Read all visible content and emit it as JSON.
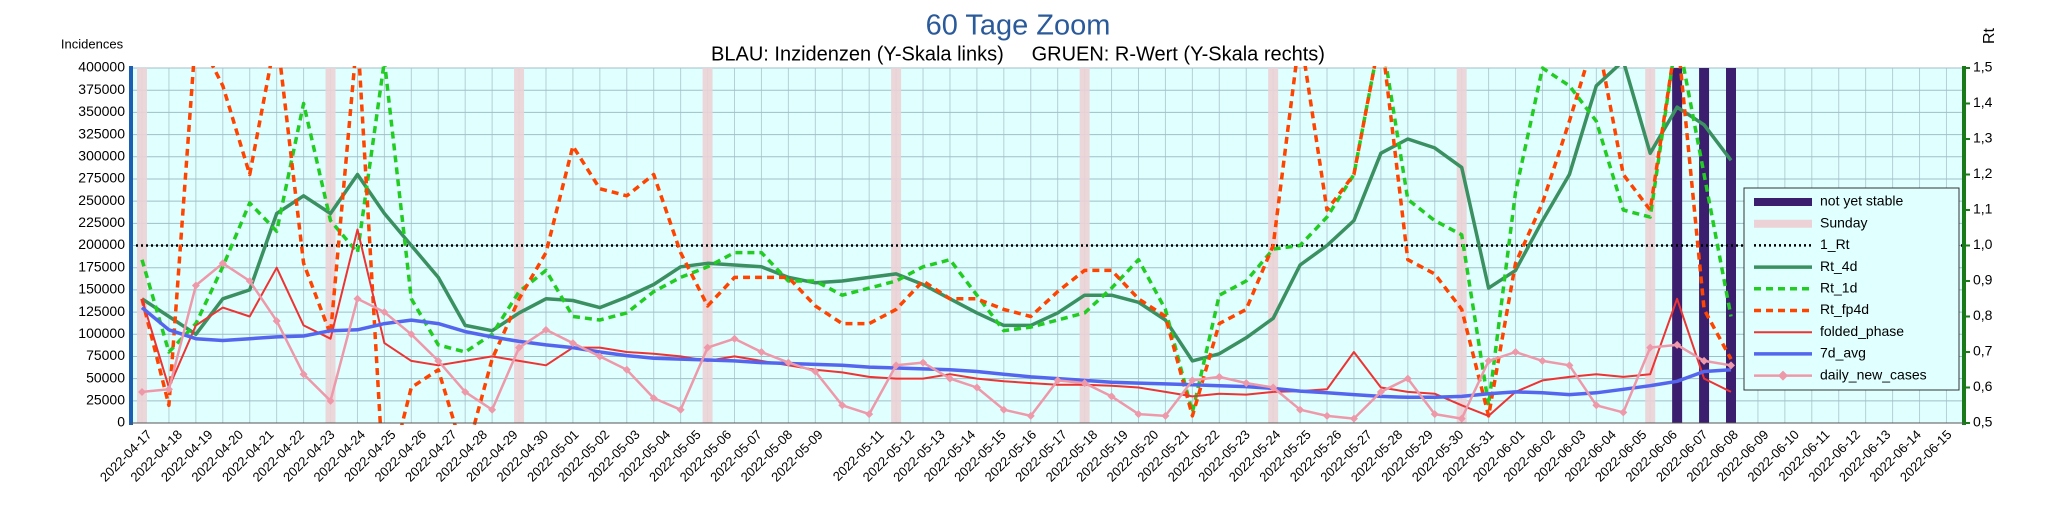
{
  "chart_data": {
    "type": "line",
    "title": "60 Tage Zoom",
    "subtitle": "BLAU: Inzidenzen (Y-Skala links)     GRUEN: R-Wert (Y-Skala rechts)",
    "y_label": "Incidences",
    "y2_label": "Rt",
    "categories": [
      "2022-04-17",
      "2022-04-18",
      "2022-04-19",
      "2022-04-20",
      "2022-04-21",
      "2022-04-22",
      "2022-04-23",
      "2022-04-24",
      "2022-04-25",
      "2022-04-26",
      "2022-04-27",
      "2022-04-28",
      "2022-04-29",
      "2022-04-30",
      "2022-05-01",
      "2022-05-02",
      "2022-05-03",
      "2022-05-04",
      "2022-05-05",
      "2022-05-06",
      "2022-05-07",
      "2022-05-08",
      "2022-05-09",
      null,
      "2022-05-11",
      "2022-05-12",
      "2022-05-13",
      "2022-05-14",
      "2022-05-15",
      "2022-05-16",
      "2022-05-17",
      "2022-05-18",
      "2022-05-19",
      "2022-05-20",
      "2022-05-21",
      "2022-05-22",
      "2022-05-23",
      "2022-05-24",
      "2022-05-25",
      "2022-05-26",
      "2022-05-27",
      "2022-05-28",
      "2022-05-29",
      "2022-05-30",
      "2022-05-31",
      "2022-06-01",
      "2022-06-02",
      "2022-06-03",
      "2022-06-04",
      "2022-06-05",
      "2022-06-06",
      "2022-06-07",
      "2022-06-08",
      "2022-06-09",
      "2022-06-10",
      "2022-06-11",
      "2022-06-12",
      "2022-06-13",
      "2022-06-14",
      "2022-06-15"
    ],
    "ylim": [
      0,
      400000
    ],
    "yticks": [
      0,
      25000,
      50000,
      75000,
      100000,
      125000,
      150000,
      175000,
      200000,
      225000,
      250000,
      275000,
      300000,
      325000,
      350000,
      375000,
      400000
    ],
    "y2lim": [
      0.5,
      1.5
    ],
    "y2ticks": [
      {
        "value": 0.5,
        "label": "0,5"
      },
      {
        "value": 0.6,
        "label": "0,6"
      },
      {
        "value": 0.7,
        "label": "0,7"
      },
      {
        "value": 0.8,
        "label": "0,8"
      },
      {
        "value": 0.9,
        "label": "0,9"
      },
      {
        "value": 1.0,
        "label": "1,0"
      },
      {
        "value": 1.1,
        "label": "1,1"
      },
      {
        "value": 1.2,
        "label": "1,2"
      },
      {
        "value": 1.3,
        "label": "1,3"
      },
      {
        "value": 1.4,
        "label": "1,4"
      },
      {
        "value": 1.5,
        "label": "1,5"
      }
    ],
    "grid": true,
    "legend": "right",
    "not_yet_stable": {
      "name": "not yet stable",
      "color": "#3b1f6e",
      "categories": [
        "2022-06-13",
        "2022-06-14",
        "2022-06-15"
      ]
    },
    "sundays": {
      "name": "Sunday",
      "color": "#ecd2d6",
      "categories": [
        "2022-04-17",
        "2022-04-24",
        "2022-05-01",
        "2022-05-08",
        "2022-05-15",
        "2022-05-22",
        "2022-05-29",
        "2022-06-05",
        "2022-06-12"
      ]
    },
    "reference_lines": [
      {
        "name": "1_Rt",
        "value": 1.0,
        "axis": "y2",
        "color": "#000000"
      }
    ],
    "series": [
      {
        "name": "Rt_4d",
        "color": "#3a9060",
        "axis": "y2",
        "width": 3.5,
        "values": [
          0.85,
          0.8,
          0.75,
          0.85,
          0.875,
          1.09,
          1.14,
          1.09,
          1.2,
          1.09,
          1.0,
          0.91,
          0.775,
          0.76,
          0.81,
          0.85,
          0.845,
          0.825,
          0.855,
          0.89,
          0.94,
          0.95,
          0.945,
          0.94,
          0.91,
          0.895,
          0.9,
          0.91,
          0.92,
          0.89,
          0.85,
          0.81,
          0.775,
          0.775,
          0.81,
          0.86,
          0.86,
          0.84,
          0.79,
          0.675,
          0.695,
          0.74,
          0.795,
          0.945,
          1.0,
          1.07,
          1.26,
          1.3,
          1.275,
          1.22,
          0.88,
          0.93,
          1.07,
          1.2,
          1.45,
          1.52,
          1.26,
          1.39,
          1.34,
          1.24
        ]
      },
      {
        "name": "Rt_1d",
        "color": "#22cc22",
        "axis": "y2",
        "width": 3.5,
        "dash": true,
        "values": [
          0.96,
          0.7,
          0.78,
          0.94,
          1.12,
          1.04,
          1.4,
          1.07,
          0.98,
          1.52,
          0.85,
          0.72,
          0.7,
          0.75,
          0.87,
          0.93,
          0.8,
          0.79,
          0.81,
          0.87,
          0.91,
          0.94,
          0.98,
          0.98,
          0.9,
          0.9,
          0.86,
          0.88,
          0.9,
          0.94,
          0.96,
          0.86,
          0.76,
          0.77,
          0.79,
          0.81,
          0.88,
          0.96,
          0.82,
          0.53,
          0.86,
          0.9,
          0.99,
          1.0,
          1.08,
          1.2,
          1.6,
          1.13,
          1.07,
          1.03,
          0.55,
          1.15,
          1.5,
          1.45,
          1.35,
          1.1,
          1.08,
          1.6,
          1.2,
          0.8
        ]
      },
      {
        "name": "Rt_fp4d",
        "color": "#ff4400",
        "axis": "y2",
        "width": 3.5,
        "dash": true,
        "values": [
          0.85,
          0.55,
          1.6,
          1.45,
          1.2,
          1.6,
          0.95,
          0.75,
          1.6,
          0.3,
          0.6,
          0.65,
          0.4,
          0.68,
          0.85,
          0.98,
          1.28,
          1.16,
          1.14,
          1.2,
          0.98,
          0.83,
          0.91,
          0.91,
          0.91,
          0.83,
          0.78,
          0.78,
          0.82,
          0.9,
          0.85,
          0.85,
          0.82,
          0.8,
          0.87,
          0.93,
          0.93,
          0.85,
          0.8,
          0.52,
          0.78,
          0.82,
          1.0,
          1.6,
          1.1,
          1.2,
          1.6,
          0.96,
          0.92,
          0.82,
          0.52,
          0.95,
          1.12,
          1.35,
          1.6,
          1.2,
          1.1,
          1.6,
          0.82,
          0.68
        ]
      },
      {
        "name": "folded_phase",
        "color": "#ee3333",
        "width": 2,
        "values": [
          140000,
          40000,
          110000,
          130000,
          120000,
          175000,
          110000,
          95000,
          218000,
          90000,
          70000,
          65000,
          70000,
          75000,
          70000,
          65000,
          85000,
          85000,
          80000,
          78000,
          75000,
          70000,
          75000,
          70000,
          65000,
          60000,
          57000,
          52000,
          50000,
          50000,
          55000,
          50000,
          47000,
          45000,
          43000,
          43000,
          42000,
          40000,
          35000,
          30000,
          33000,
          32000,
          35000,
          36000,
          38000,
          80000,
          40000,
          35000,
          33000,
          20000,
          8000,
          35000,
          48000,
          52000,
          55000,
          52000,
          55000,
          140000,
          50000,
          35000
        ]
      },
      {
        "name": "7d_avg",
        "color": "#5566ee",
        "width": 3.5,
        "values": [
          130000,
          105000,
          95000,
          93000,
          95000,
          97000,
          98000,
          104000,
          105000,
          112000,
          116000,
          112000,
          103000,
          97000,
          92000,
          88000,
          85000,
          80000,
          76000,
          73000,
          72000,
          71000,
          70000,
          68000,
          67000,
          66000,
          65000,
          63000,
          62000,
          61000,
          60000,
          58000,
          55000,
          52000,
          50000,
          48000,
          46000,
          45000,
          44000,
          43000,
          42000,
          41000,
          39000,
          36000,
          34000,
          32000,
          30000,
          29000,
          29000,
          30000,
          33000,
          35000,
          34000,
          32000,
          34000,
          38000,
          42000,
          47000,
          58000,
          60000
        ]
      },
      {
        "name": "daily_new_cases",
        "color": "#ee99aa",
        "width": 2.5,
        "marker": "diamond",
        "values": [
          35000,
          38000,
          155000,
          180000,
          160000,
          115000,
          55000,
          25000,
          140000,
          125000,
          100000,
          70000,
          35000,
          15000,
          85000,
          105000,
          90000,
          75000,
          60000,
          28000,
          15000,
          85000,
          95000,
          80000,
          68000,
          58000,
          20000,
          10000,
          65000,
          68000,
          50000,
          40000,
          15000,
          8000,
          48000,
          45000,
          30000,
          10000,
          8000,
          48000,
          52000,
          45000,
          40000,
          15000,
          8000,
          5000,
          35000,
          50000,
          10000,
          5000,
          70000,
          80000,
          70000,
          65000,
          20000,
          12000,
          85000,
          88000,
          70000,
          65000
        ]
      }
    ]
  }
}
